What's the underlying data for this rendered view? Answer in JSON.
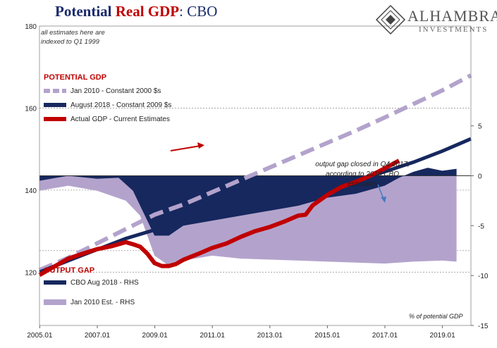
{
  "title": {
    "part1": "Potential ",
    "part2": "Real GDP",
    "part3": ":  CBO"
  },
  "logo": {
    "name": "ALHAMBRA",
    "sub": "INVESTMENTS"
  },
  "chart_data": {
    "type": "line",
    "note": "all estimates here are indexed to Q1 1999",
    "x_ticks": [
      "2005.01",
      "2007.01",
      "2009.01",
      "2011.01",
      "2013.01",
      "2015.01",
      "2017.01",
      "2019.01"
    ],
    "left_axis": {
      "ticks": [
        "120",
        "140",
        "160",
        "180"
      ],
      "ylim": [
        107,
        180
      ]
    },
    "right_axis": {
      "ticks": [
        "5",
        "0",
        "-5",
        "-10",
        "-15"
      ],
      "ylim": [
        -15,
        15
      ]
    },
    "potential_gdp_title": "POTENTIAL GDP",
    "output_gap_title": "OUTPUT GAP",
    "series": [
      {
        "name": "Jan 2010 - Constant 2000 $s",
        "axis": "left",
        "color": "#b3a3cc",
        "style": "dashed",
        "x": [
          2005.0,
          2006.0,
          2007.0,
          2008.0,
          2009.0,
          2010.0,
          2011.0,
          2012.0,
          2013.0,
          2014.0,
          2015.0,
          2016.0,
          2017.0,
          2018.0,
          2019.0,
          2020.0
        ],
        "y": [
          120.5,
          123.5,
          127.0,
          130.5,
          134.0,
          136.5,
          139.5,
          142.5,
          145.5,
          148.5,
          151.5,
          154.5,
          157.7,
          161.0,
          164.3,
          168.0
        ]
      },
      {
        "name": "August 2018 - Constant 2009 $s",
        "axis": "left",
        "color": "#16285e",
        "style": "solid",
        "x": [
          2005.0,
          2006.0,
          2007.0,
          2008.0,
          2009.0,
          2010.0,
          2011.0,
          2012.0,
          2013.0,
          2014.0,
          2015.0,
          2016.0,
          2017.0,
          2018.0,
          2019.0,
          2020.0
        ],
        "y": [
          120.0,
          122.8,
          125.5,
          128.2,
          130.3,
          131.8,
          133.2,
          134.8,
          136.5,
          138.3,
          140.2,
          142.3,
          144.5,
          146.8,
          149.5,
          152.5
        ]
      },
      {
        "name": "Actual GDP - Current Estimates",
        "axis": "left",
        "color": "#c00000",
        "style": "solid",
        "x": [
          2005.0,
          2005.5,
          2006.0,
          2006.5,
          2007.0,
          2007.5,
          2008.0,
          2008.25,
          2008.5,
          2008.75,
          2009.0,
          2009.25,
          2009.5,
          2009.75,
          2010.0,
          2010.5,
          2011.0,
          2011.5,
          2012.0,
          2012.5,
          2013.0,
          2013.5,
          2014.0,
          2014.25,
          2014.5,
          2015.0,
          2015.5,
          2016.0,
          2016.5,
          2017.0,
          2017.5
        ],
        "y": [
          119.3,
          121.3,
          123.3,
          124.5,
          125.6,
          126.3,
          127.3,
          126.8,
          126.2,
          124.5,
          122.2,
          121.5,
          121.5,
          122.0,
          123.0,
          124.4,
          125.9,
          127.0,
          128.6,
          130.0,
          131.0,
          132.3,
          133.8,
          134.0,
          136.3,
          138.8,
          140.8,
          142.0,
          143.5,
          145.3,
          147.2
        ]
      },
      {
        "name": "CBO Aug 2018 - RHS",
        "axis": "right",
        "color": "#16285e",
        "style": "area",
        "x": [
          2005.0,
          2006.0,
          2007.0,
          2007.75,
          2008.25,
          2008.5,
          2009.0,
          2009.5,
          2010.0,
          2011.0,
          2012.0,
          2013.0,
          2014.0,
          2015.0,
          2016.0,
          2017.0,
          2017.5,
          2018.0,
          2018.5,
          2019.0,
          2019.5
        ],
        "y": [
          -0.5,
          0.0,
          -0.3,
          -0.2,
          -1.5,
          -3.0,
          -6.0,
          -6.0,
          -5.0,
          -4.5,
          -4.0,
          -3.5,
          -3.0,
          -2.2,
          -1.8,
          -1.0,
          -0.2,
          0.4,
          0.8,
          0.5,
          0.7
        ]
      },
      {
        "name": "Jan 2010 Est. - RHS",
        "axis": "right",
        "color": "#b3a3cc",
        "style": "area",
        "x": [
          2005.0,
          2006.0,
          2007.0,
          2008.0,
          2008.5,
          2009.0,
          2009.5,
          2010.0,
          2011.0,
          2012.0,
          2013.0,
          2014.0,
          2015.0,
          2016.0,
          2017.0,
          2018.0,
          2019.0,
          2019.5
        ],
        "y": [
          -1.5,
          -1.0,
          -1.5,
          -2.5,
          -4.0,
          -8.0,
          -9.0,
          -8.5,
          -8.0,
          -8.3,
          -8.4,
          -8.5,
          -8.6,
          -8.7,
          -8.8,
          -8.6,
          -8.5,
          -8.6
        ]
      }
    ],
    "annotation": {
      "lines": [
        "output gap closed in Q4 2017,",
        "according to 2018 CBO",
        "estimates"
      ]
    },
    "rhs_label": "% of potential GDP"
  }
}
